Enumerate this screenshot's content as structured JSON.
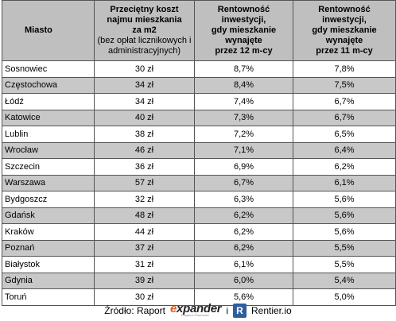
{
  "table": {
    "headers": {
      "city": "Miasto",
      "cost_lines": [
        "Przeciętny koszt",
        "najmu mieszkania",
        "za m2"
      ],
      "cost_note_lines": [
        "(bez opłat licznikowych i",
        "administracyjnych)"
      ],
      "yield12_lines": [
        "Rentowność",
        "inwestycji,",
        "gdy mieszkanie",
        "wynajęte",
        "przez 12 m-cy"
      ],
      "yield11_lines": [
        "Rentowność",
        "inwestycji,",
        "gdy mieszkanie",
        "wynajęte",
        "przez 11 m-cy"
      ]
    },
    "rows": [
      {
        "city": "Sosnowiec",
        "cost": "30 zł",
        "y12": "8,7%",
        "y11": "7,8%"
      },
      {
        "city": "Częstochowa",
        "cost": "34 zł",
        "y12": "8,4%",
        "y11": "7,5%"
      },
      {
        "city": "Łódź",
        "cost": "34 zł",
        "y12": "7,4%",
        "y11": "6,7%"
      },
      {
        "city": "Katowice",
        "cost": "40 zł",
        "y12": "7,3%",
        "y11": "6,7%"
      },
      {
        "city": "Lublin",
        "cost": "38 zł",
        "y12": "7,2%",
        "y11": "6,5%"
      },
      {
        "city": "Wrocław",
        "cost": "46 zł",
        "y12": "7,1%",
        "y11": "6,4%"
      },
      {
        "city": "Szczecin",
        "cost": "36 zł",
        "y12": "6,9%",
        "y11": "6,2%"
      },
      {
        "city": "Warszawa",
        "cost": "57 zł",
        "y12": "6,7%",
        "y11": "6,1%"
      },
      {
        "city": "Bydgoszcz",
        "cost": "32 zł",
        "y12": "6,3%",
        "y11": "5,6%"
      },
      {
        "city": "Gdańsk",
        "cost": "48 zł",
        "y12": "6,2%",
        "y11": "5,6%"
      },
      {
        "city": "Kraków",
        "cost": "44 zł",
        "y12": "6,2%",
        "y11": "5,6%"
      },
      {
        "city": "Poznań",
        "cost": "37 zł",
        "y12": "6,2%",
        "y11": "5,5%"
      },
      {
        "city": "Białystok",
        "cost": "31 zł",
        "y12": "6,1%",
        "y11": "5,5%"
      },
      {
        "city": "Gdynia",
        "cost": "39 zł",
        "y12": "6,0%",
        "y11": "5,4%"
      },
      {
        "city": "Toruń",
        "cost": "30 zł",
        "y12": "5,6%",
        "y11": "5,0%"
      }
    ]
  },
  "source": {
    "label": "Źródło: Raport",
    "expander_logo": {
      "prefix": "e",
      "rest": "xpander",
      "tagline": "Eksperci Finansowi"
    },
    "conjunction": "i",
    "rentier_logo": {
      "letter": "R",
      "name": "Rentier.io"
    }
  },
  "colors": {
    "header_bg": "#bfbfbf",
    "shaded_row_bg": "#c8c8c8",
    "expander_orange": "#e05a16",
    "rentier_blue": "#2f5d9e"
  }
}
